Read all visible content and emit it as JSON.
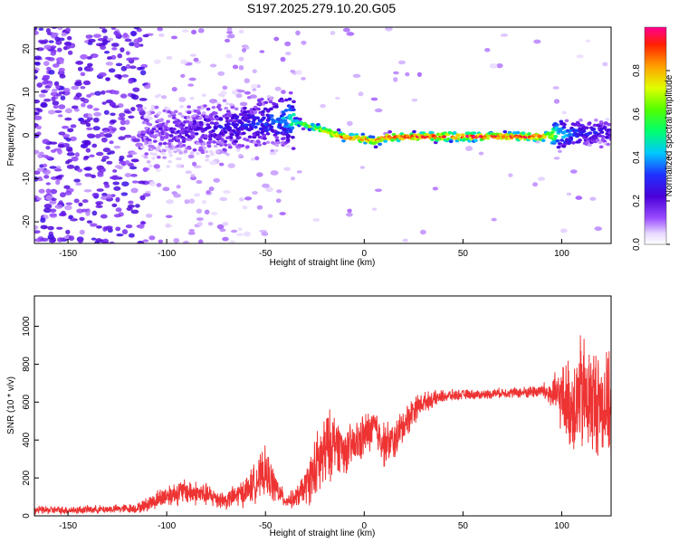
{
  "title": "S197.2025.279.10.20.G05",
  "chart_data": [
    {
      "type": "heatmap",
      "title": "S197.2025.279.10.20.G05",
      "xlabel": "Height of straight line (km)",
      "ylabel": "Frequency (Hz)",
      "xlim": [
        -167,
        125
      ],
      "ylim": [
        -25,
        25
      ],
      "xticks": [
        -150,
        -100,
        -50,
        0,
        50,
        100
      ],
      "yticks": [
        -20,
        -10,
        0,
        10,
        20
      ],
      "colorbar": {
        "label": "Normalized spectral amplitude",
        "range": [
          0,
          1
        ],
        "ticks": [
          "0.0",
          "0.2",
          "0.4",
          "0.6",
          "0.8"
        ]
      },
      "ridge": {
        "description_points_x": [
          -110,
          -90,
          -70,
          -50,
          -40,
          -35,
          -30,
          -20,
          -10,
          0,
          5,
          10,
          30,
          60,
          90,
          100,
          110,
          120,
          125
        ],
        "frequency_y": [
          0.5,
          1.2,
          2.0,
          3.0,
          4.0,
          3.0,
          2.5,
          1.0,
          -0.5,
          -0.8,
          -1.5,
          -0.5,
          -0.3,
          -0.3,
          -0.3,
          0.3,
          0.5,
          0.8,
          0.5
        ],
        "amplitude": [
          0.15,
          0.2,
          0.25,
          0.3,
          0.4,
          0.55,
          0.6,
          0.75,
          0.9,
          0.9,
          0.85,
          0.95,
          0.98,
          0.98,
          0.95,
          0.45,
          0.3,
          0.25,
          0.2
        ]
      }
    },
    {
      "type": "line",
      "xlabel": "Height of straight line (km)",
      "ylabel": "SNR (10 * v/v)",
      "xlim": [
        -167,
        125
      ],
      "ylim": [
        0,
        1160
      ],
      "xticks": [
        -150,
        -100,
        -50,
        0,
        50,
        100
      ],
      "yticks": [
        0,
        200,
        400,
        600,
        800,
        1000
      ],
      "series": [
        {
          "name": "SNR",
          "color": "#ee3333",
          "x": [
            -167,
            -150,
            -130,
            -115,
            -110,
            -100,
            -90,
            -80,
            -70,
            -60,
            -50,
            -45,
            -40,
            -35,
            -30,
            -25,
            -20,
            -15,
            -10,
            -5,
            0,
            5,
            10,
            15,
            20,
            25,
            30,
            40,
            50,
            60,
            70,
            80,
            90,
            95,
            100,
            105,
            110,
            115,
            120,
            125
          ],
          "y": [
            30,
            30,
            35,
            40,
            60,
            110,
            130,
            110,
            80,
            130,
            230,
            150,
            80,
            90,
            150,
            240,
            330,
            400,
            340,
            370,
            420,
            470,
            380,
            390,
            480,
            560,
            600,
            630,
            640,
            640,
            650,
            650,
            660,
            640,
            620,
            580,
            630,
            610,
            600,
            560
          ],
          "spread": [
            25,
            25,
            25,
            30,
            45,
            70,
            80,
            70,
            55,
            90,
            150,
            100,
            40,
            60,
            100,
            200,
            250,
            180,
            140,
            140,
            140,
            120,
            140,
            120,
            110,
            90,
            60,
            40,
            30,
            30,
            30,
            35,
            45,
            100,
            200,
            300,
            380,
            350,
            320,
            300
          ]
        }
      ]
    }
  ]
}
